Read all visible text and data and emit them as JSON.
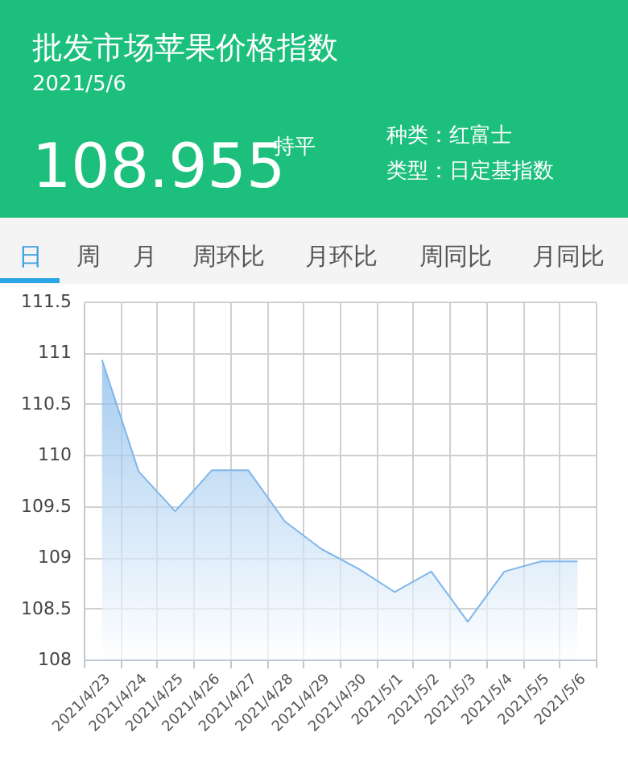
{
  "chart_data": {
    "type": "area",
    "title": "批发市场苹果价格指数",
    "subtitle": "2021/5/6",
    "annotations": [
      "108.955",
      "持平",
      "种类：红富士",
      "类型：日定基指数",
      "日",
      "周",
      "月",
      "周环比",
      "月环比",
      "周同比",
      "月同比"
    ],
    "categories": [
      "2021/4/23",
      "2021/4/24",
      "2021/4/25",
      "2021/4/26",
      "2021/4/27",
      "2021/4/28",
      "2021/4/29",
      "2021/4/30",
      "2021/5/1",
      "2021/5/2",
      "2021/5/3",
      "2021/5/4",
      "2021/5/5",
      "2021/5/6"
    ],
    "series": [
      {
        "color": "#7fb6ea",
        "values": [
          110.93,
          109.84,
          109.45,
          109.85,
          109.85,
          109.35,
          109.08,
          108.89,
          108.66,
          108.86,
          108.37,
          108.86,
          108.96,
          108.96
        ]
      }
    ],
    "ylim": [
      108,
      111.5
    ],
    "yticks": [
      108,
      108.5,
      109,
      109.5,
      110,
      110.5,
      111,
      111.5
    ],
    "grid": true
  }
}
